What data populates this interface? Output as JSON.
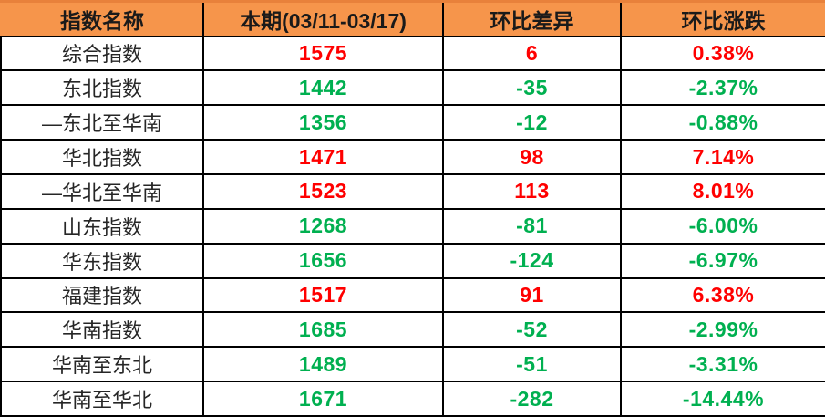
{
  "colors": {
    "header_bg": "#F6954B",
    "header_border_top": "#E8813B",
    "grid": "#000000",
    "up": "#FF0000",
    "down": "#00B050",
    "header_text": "#1A1A1A"
  },
  "table": {
    "headers": [
      "指数名称",
      "本期(03/11-03/17)",
      "环比差异",
      "环比涨跌"
    ],
    "rows": [
      {
        "name": "综合指数",
        "current": "1575",
        "diff": "6",
        "pct": "0.38%",
        "trend": "up"
      },
      {
        "name": "东北指数",
        "current": "1442",
        "diff": "-35",
        "pct": "-2.37%",
        "trend": "down"
      },
      {
        "name": "—东北至华南",
        "current": "1356",
        "diff": "-12",
        "pct": "-0.88%",
        "trend": "down"
      },
      {
        "name": "华北指数",
        "current": "1471",
        "diff": "98",
        "pct": "7.14%",
        "trend": "up"
      },
      {
        "name": "—华北至华南",
        "current": "1523",
        "diff": "113",
        "pct": "8.01%",
        "trend": "up"
      },
      {
        "name": "山东指数",
        "current": "1268",
        "diff": "-81",
        "pct": "-6.00%",
        "trend": "down"
      },
      {
        "name": "华东指数",
        "current": "1656",
        "diff": "-124",
        "pct": "-6.97%",
        "trend": "down"
      },
      {
        "name": "福建指数",
        "current": "1517",
        "diff": "91",
        "pct": "6.38%",
        "trend": "up"
      },
      {
        "name": "华南指数",
        "current": "1685",
        "diff": "-52",
        "pct": "-2.99%",
        "trend": "down"
      },
      {
        "name": "华南至东北",
        "current": "1489",
        "diff": "-51",
        "pct": "-3.31%",
        "trend": "down"
      },
      {
        "name": "华南至华北",
        "current": "1671",
        "diff": "-282",
        "pct": "-14.44%",
        "trend": "down"
      }
    ]
  },
  "chart_data": {
    "type": "table",
    "columns": [
      "指数名称",
      "本期(03/11-03/17)",
      "环比差异",
      "环比涨跌"
    ],
    "rows": [
      [
        "综合指数",
        1575,
        6,
        "0.38%"
      ],
      [
        "东北指数",
        1442,
        -35,
        "-2.37%"
      ],
      [
        "—东北至华南",
        1356,
        -12,
        "-0.88%"
      ],
      [
        "华北指数",
        1471,
        98,
        "7.14%"
      ],
      [
        "—华北至华南",
        1523,
        113,
        "8.01%"
      ],
      [
        "山东指数",
        1268,
        -81,
        "-6.00%"
      ],
      [
        "华东指数",
        1656,
        -124,
        "-6.97%"
      ],
      [
        "福建指数",
        1517,
        91,
        "6.38%"
      ],
      [
        "华南指数",
        1685,
        -52,
        "-2.99%"
      ],
      [
        "华南至东北",
        1489,
        -51,
        "-3.31%"
      ],
      [
        "华南至华北",
        1671,
        -282,
        "-14.44%"
      ]
    ],
    "legend": "red = rise vs prior period, green = decline vs prior period"
  }
}
